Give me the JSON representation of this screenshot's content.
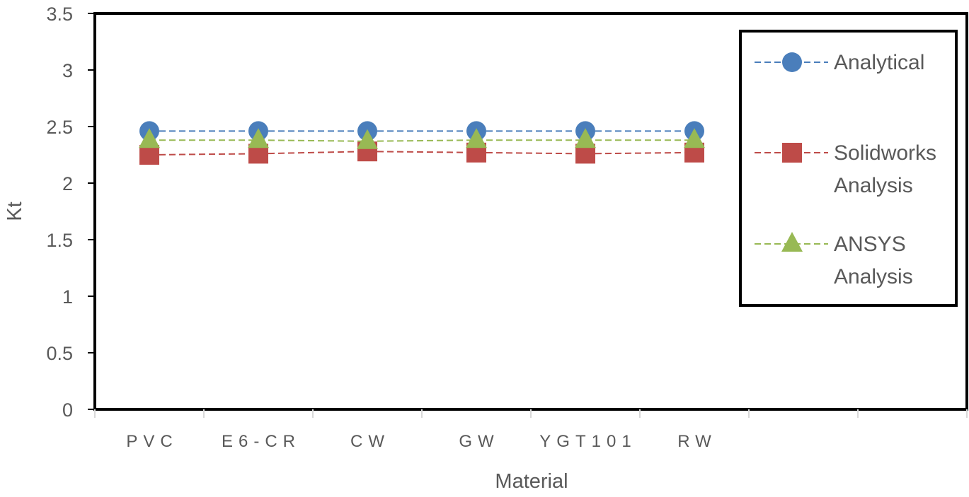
{
  "chart_data": {
    "type": "line",
    "title": "",
    "xlabel": "Material",
    "ylabel": "Kt",
    "categories": [
      "PVC",
      "E6-CR",
      "CW",
      "GW",
      "YGT101",
      "RW"
    ],
    "slots": 8,
    "ylim": [
      0,
      3.5
    ],
    "yticks": [
      "0",
      "0.5",
      "1",
      "1.5",
      "2",
      "2.5",
      "3",
      "3.5"
    ],
    "grid": false,
    "legend_position": "top-right",
    "series": [
      {
        "name": "Analytical",
        "legend_lines": [
          "Analytical"
        ],
        "marker": "circle",
        "color": "#4A7EBB",
        "values": [
          2.46,
          2.46,
          2.46,
          2.46,
          2.46,
          2.46
        ]
      },
      {
        "name": "Solidworks Analysis",
        "legend_lines": [
          "Solidworks",
          "Analysis"
        ],
        "marker": "square",
        "color": "#BE4B48",
        "values": [
          2.25,
          2.26,
          2.28,
          2.27,
          2.26,
          2.27
        ]
      },
      {
        "name": "ANSYS Analysis",
        "legend_lines": [
          "ANSYS",
          "Analysis"
        ],
        "marker": "triangle",
        "color": "#98B954",
        "values": [
          2.38,
          2.38,
          2.37,
          2.38,
          2.38,
          2.38
        ]
      }
    ]
  }
}
